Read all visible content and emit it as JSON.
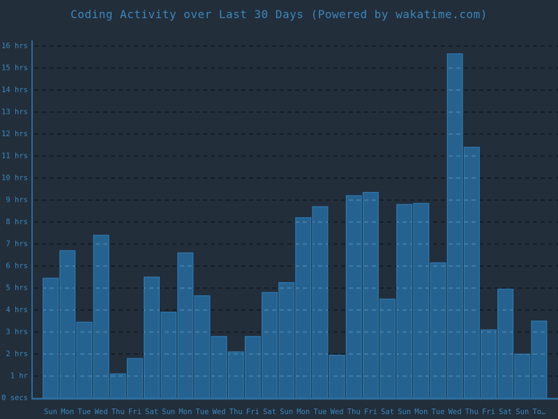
{
  "chart_data": {
    "type": "bar",
    "title": "Coding Activity over Last 30 Days (Powered by wakatime.com)",
    "unit": "hours",
    "categories": [
      "Sun",
      "Mon",
      "Tue",
      "Wed",
      "Thu",
      "Fri",
      "Sat",
      "Sun",
      "Mon",
      "Tue",
      "Wed",
      "Thu",
      "Fri",
      "Sat",
      "Sun",
      "Mon",
      "Tue",
      "Wed",
      "Thu",
      "Fri",
      "Sat",
      "Sun",
      "Mon",
      "Tue",
      "Wed",
      "Thu",
      "Fri",
      "Sat",
      "Sun",
      "To…"
    ],
    "values": [
      5.45,
      6.7,
      3.45,
      7.4,
      1.1,
      1.8,
      5.5,
      3.9,
      6.6,
      4.65,
      2.8,
      2.1,
      2.8,
      4.8,
      5.25,
      8.2,
      8.7,
      1.95,
      9.2,
      9.35,
      4.5,
      8.8,
      8.85,
      6.15,
      15.65,
      11.4,
      3.1,
      4.95,
      2.0,
      3.5
    ],
    "xlabel": "",
    "ylabel": "",
    "ylim": [
      0,
      16
    ],
    "y_tick_labels": [
      "0 secs",
      "1 hr",
      "2 hrs",
      "3 hrs",
      "4 hrs",
      "5 hrs",
      "6 hrs",
      "7 hrs",
      "8 hrs",
      "9 hrs",
      "10 hrs",
      "11 hrs",
      "12 hrs",
      "13 hrs",
      "14 hrs",
      "15 hrs",
      "16 hrs"
    ],
    "grid": "horizontal-dashed",
    "legend_position": "none",
    "colors": {
      "background": "#222e3a",
      "bar_fill": "#25628f",
      "bar_border": "#2e7ab2",
      "label_text": "#3d87bd",
      "axis_line": "#2e6e9e",
      "grid_dark": "#0e141b",
      "grid_light": "#8fc3e8"
    }
  }
}
